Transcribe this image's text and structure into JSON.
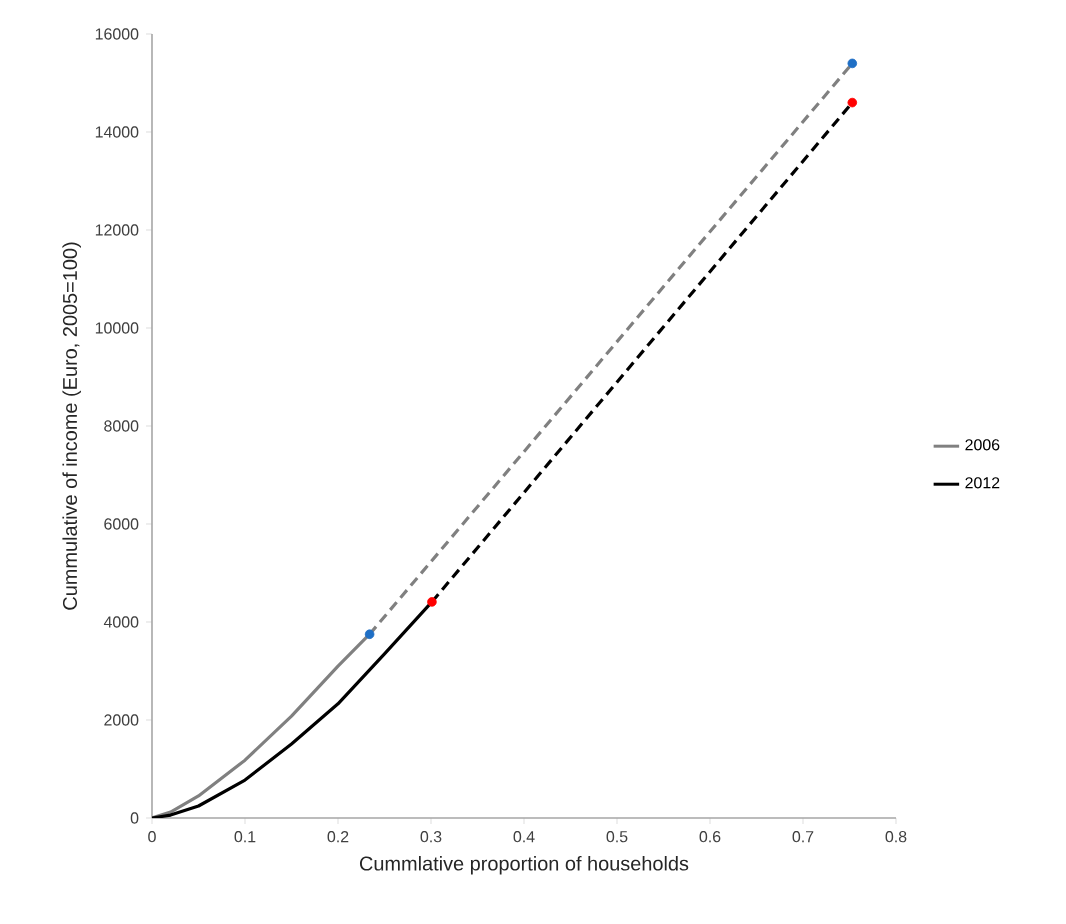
{
  "chart_data": {
    "type": "line",
    "xlabel": "Cummlative proportion of households",
    "ylabel": "Cummulative of income (Euro, 2005=100)",
    "xlim": [
      0,
      0.8
    ],
    "ylim": [
      0,
      16000
    ],
    "xticks": [
      0,
      0.1,
      0.2,
      0.3,
      0.4,
      0.5,
      0.6,
      0.7,
      0.8
    ],
    "yticks": [
      0,
      2000,
      4000,
      6000,
      8000,
      10000,
      12000,
      14000,
      16000
    ],
    "grid": false,
    "legend": "right",
    "marker": "none",
    "series": [
      {
        "name": "2006",
        "color": "#808080",
        "line_style": "solid",
        "x": [
          0,
          0.02,
          0.05,
          0.1,
          0.15,
          0.2,
          0.234
        ],
        "values": [
          0,
          120,
          450,
          1180,
          2080,
          3100,
          3750
        ]
      },
      {
        "name": "2012",
        "color": "#000000",
        "line_style": "solid",
        "x": [
          0,
          0.02,
          0.05,
          0.1,
          0.15,
          0.2,
          0.25,
          0.301
        ],
        "values": [
          0,
          60,
          245,
          775,
          1510,
          2330,
          3350,
          4410
        ]
      },
      {
        "color": "#808080",
        "line_style": "dashed",
        "x": [
          0.234,
          0.753
        ],
        "values": [
          3750,
          15400
        ]
      },
      {
        "color": "#000000",
        "line_style": "dashed",
        "x": [
          0.301,
          0.753
        ],
        "values": [
          4410,
          14600
        ]
      },
      {
        "type": "scatter",
        "marker": "circle",
        "color": "#1f6fc5",
        "x": [
          0.234,
          0.753
        ],
        "values": [
          3750,
          15400
        ]
      },
      {
        "type": "scatter",
        "marker": "circle",
        "color": "#ff0000",
        "x": [
          0.301,
          0.753
        ],
        "values": [
          4410,
          14600
        ]
      }
    ]
  }
}
